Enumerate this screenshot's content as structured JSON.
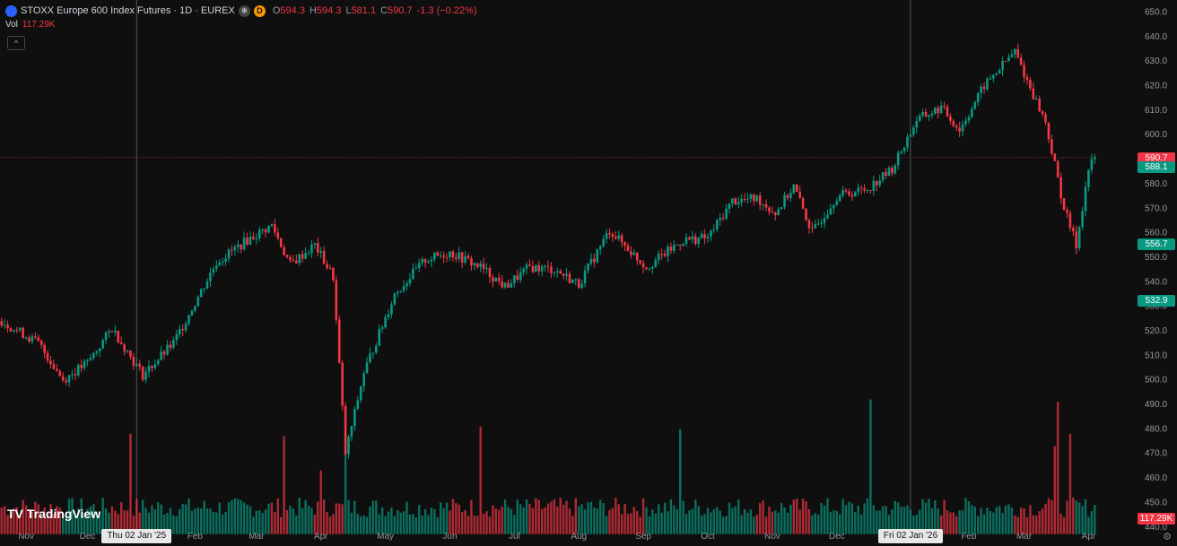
{
  "header": {
    "title": "STOXX Europe 600 Index Futures · 1D · EUREX",
    "badge_d": "D",
    "ohlc": [
      {
        "k": "O",
        "v": "594.3"
      },
      {
        "k": "H",
        "v": "594.3"
      },
      {
        "k": "L",
        "v": "581.1"
      },
      {
        "k": "C",
        "v": "590.7"
      },
      {
        "k": "",
        "v": "-1.3 (−0.22%)"
      }
    ]
  },
  "volume": {
    "label": "Vol",
    "value": "117.29K"
  },
  "logo": "TradingView",
  "price_tags": [
    {
      "text": "590.7",
      "color": "#f23645",
      "price": 590.7
    },
    {
      "text": "588.1",
      "color": "#089981",
      "price": 587.0
    },
    {
      "text": "556.7",
      "color": "#089981",
      "price": 555.5
    },
    {
      "text": "532.9",
      "color": "#089981",
      "price": 532.5
    },
    {
      "text": "117.29K",
      "color": "#f23645",
      "price": 443.5
    }
  ],
  "crosshair_dates": [
    {
      "text": "Thu 02 Jan '25",
      "x_index": 44
    },
    {
      "text": "Fri 02 Jan '26",
      "x_index": 296
    }
  ],
  "colors": {
    "up": "#089981",
    "down": "#f23645",
    "bg": "#0f0f0f"
  },
  "chart_data": {
    "type": "candlestick",
    "y_ticks": [
      650,
      640,
      630,
      620,
      610,
      600,
      590,
      580,
      570,
      560,
      550,
      540,
      530,
      520,
      510,
      500,
      490,
      480,
      470,
      460,
      450,
      440
    ],
    "ylim": [
      437,
      652
    ],
    "x_labels": [
      "Nov",
      "Dec",
      "Feb",
      "Mar",
      "Apr",
      "May",
      "Jun",
      "Jul",
      "Aug",
      "Sep",
      "Oct",
      "Nov",
      "Dec",
      "Feb",
      "Mar",
      "Apr"
    ],
    "x_label_index": [
      8,
      28,
      63,
      83,
      104,
      125,
      146,
      167,
      188,
      209,
      230,
      251,
      272,
      315,
      333,
      354
    ],
    "last_price": 590.7,
    "trend": [
      [
        0,
        524
      ],
      [
        12,
        515
      ],
      [
        20,
        500
      ],
      [
        28,
        507
      ],
      [
        36,
        521
      ],
      [
        46,
        502
      ],
      [
        56,
        515
      ],
      [
        70,
        548
      ],
      [
        80,
        557
      ],
      [
        88,
        563
      ],
      [
        94,
        547
      ],
      [
        102,
        555
      ],
      [
        108,
        542
      ],
      [
        112,
        470
      ],
      [
        118,
        503
      ],
      [
        128,
        535
      ],
      [
        138,
        549
      ],
      [
        146,
        552
      ],
      [
        156,
        546
      ],
      [
        164,
        538
      ],
      [
        172,
        546
      ],
      [
        180,
        545
      ],
      [
        188,
        539
      ],
      [
        198,
        561
      ],
      [
        210,
        546
      ],
      [
        222,
        557
      ],
      [
        230,
        558
      ],
      [
        238,
        573
      ],
      [
        246,
        574
      ],
      [
        252,
        568
      ],
      [
        258,
        579
      ],
      [
        264,
        560
      ],
      [
        272,
        575
      ],
      [
        282,
        578
      ],
      [
        290,
        586
      ],
      [
        298,
        606
      ],
      [
        306,
        611
      ],
      [
        312,
        602
      ],
      [
        320,
        620
      ],
      [
        330,
        634
      ],
      [
        334,
        622
      ],
      [
        340,
        605
      ],
      [
        346,
        570
      ],
      [
        350,
        555
      ],
      [
        354,
        586
      ],
      [
        356,
        590.7
      ]
    ],
    "volume_bars": {
      "count": 357,
      "axis_base": 440,
      "typical": 447,
      "spikes": [
        [
          42,
          478
        ],
        [
          92,
          477
        ],
        [
          104,
          463
        ],
        [
          112,
          480
        ],
        [
          156,
          481
        ],
        [
          221,
          480
        ],
        [
          283,
          492
        ],
        [
          344,
          491
        ],
        [
          343,
          473
        ],
        [
          348,
          478
        ]
      ]
    },
    "count": 357
  }
}
